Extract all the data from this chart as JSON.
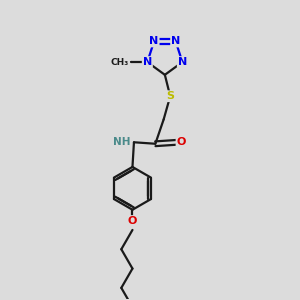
{
  "bg_color": "#dcdcdc",
  "bond_color": "#1a1a1a",
  "N_color": "#0000ee",
  "O_color": "#dd0000",
  "S_color": "#bbbb00",
  "NH_color": "#4a8a8a",
  "line_width": 1.6,
  "font_size": 8,
  "fig_size": [
    3.0,
    3.0
  ],
  "dpi": 100,
  "xlim": [
    0,
    10
  ],
  "ylim": [
    0,
    10
  ]
}
